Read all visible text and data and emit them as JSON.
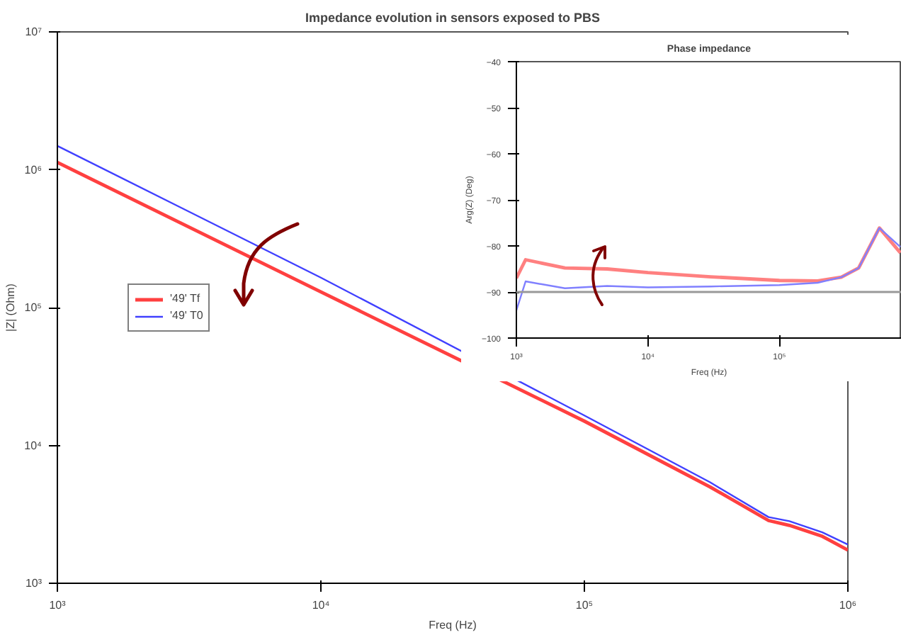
{
  "chart_data": [
    {
      "type": "line",
      "title": "Impedance evolution in sensors exposed to PBS",
      "xlabel": "Freq (Hz)",
      "ylabel": "|Z| (Ohm)",
      "log": "xy",
      "xlim": [
        1000,
        1000000
      ],
      "ylim": [
        1000,
        10000000
      ],
      "xticks": [
        {
          "value": 1000,
          "label": "10³"
        },
        {
          "value": 10000,
          "label": "10⁴"
        },
        {
          "value": 100000,
          "label": "10⁵"
        },
        {
          "value": 1000000,
          "label": "10⁶"
        }
      ],
      "yticks": [
        {
          "value": 1000,
          "label": "10³"
        },
        {
          "value": 10000,
          "label": "10⁴"
        },
        {
          "value": 100000,
          "label": "10⁵"
        },
        {
          "value": 1000000,
          "label": "10⁶"
        },
        {
          "value": 10000000,
          "label": "10⁷"
        }
      ],
      "grid": false,
      "legend": "left",
      "line_style": "solid",
      "x": [
        1000,
        10000,
        100000,
        300000,
        500000,
        600000,
        800000,
        1000000
      ],
      "series": [
        {
          "name": "'49' Tf",
          "color": "#ff4040",
          "values": [
            1130000,
            130000,
            15000,
            5000,
            2850,
            2630,
            2190,
            1740
          ]
        },
        {
          "name": "'49' T0",
          "color": "#4040ff",
          "values": [
            1490000,
            165000,
            16500,
            5400,
            3020,
            2820,
            2340,
            1910
          ]
        }
      ]
    },
    {
      "type": "line",
      "title": "Phase impedance",
      "xlabel": "Freq (Hz)",
      "ylabel": "Arg(Z) (Deg)",
      "log": "x",
      "xlim": [
        1000,
        850000
      ],
      "ylim": [
        -100,
        -40
      ],
      "xticks": [
        {
          "value": 1000,
          "label": "10³"
        },
        {
          "value": 10000,
          "label": "10⁴"
        },
        {
          "value": 100000,
          "label": "10⁵"
        }
      ],
      "yticks": [
        -100,
        -90,
        -80,
        -70,
        -60,
        -50,
        -40
      ],
      "grid": false,
      "legend": false,
      "line_style": "solid",
      "ref_lines": [
        {
          "axis": "y",
          "value": -90,
          "color": "#999999"
        }
      ],
      "x": [
        1000,
        1175,
        2340,
        4900,
        10000,
        30000,
        100000,
        195000,
        295000,
        400000,
        575000,
        830000
      ],
      "series": [
        {
          "color": "#ff8080",
          "values": [
            -87,
            -83,
            -84.8,
            -85,
            -85.8,
            -86.7,
            -87.5,
            -87.6,
            -86.8,
            -84.8,
            -76.1,
            -81.5
          ]
        },
        {
          "color": "#8080ff",
          "values": [
            -94,
            -87.7,
            -89.2,
            -88.7,
            -89,
            -88.8,
            -88.5,
            -88,
            -86.8,
            -84.8,
            -76.1,
            -80.2
          ]
        }
      ]
    }
  ]
}
